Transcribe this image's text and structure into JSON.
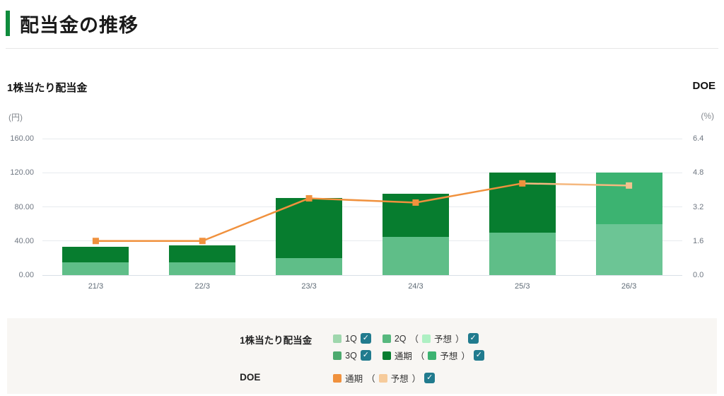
{
  "header": {
    "title": "配当金の推移"
  },
  "chart_data": {
    "type": "bar",
    "subtype": "stacked-bar-with-line",
    "categories": [
      "21/3",
      "22/3",
      "23/3",
      "24/3",
      "25/3",
      "26/3"
    ],
    "bar_axis": {
      "title": "1株当たり配当金",
      "unit": "(円)",
      "min": 0,
      "max": 160,
      "tick_labels": [
        "160.00",
        "120.00",
        "80.00",
        "40.00",
        "0.00"
      ],
      "tick_values": [
        160,
        120,
        80,
        40,
        0
      ]
    },
    "line_axis": {
      "title": "DOE",
      "unit": "(%)",
      "min": 0,
      "max": 6.4,
      "tick_labels": [
        "6.4",
        "4.8",
        "3.2",
        "1.6",
        "0.0"
      ],
      "tick_values": [
        6.4,
        4.8,
        3.2,
        1.6,
        0
      ]
    },
    "series": [
      {
        "name": "2Q",
        "role": "bar-bottom",
        "color": "#5fbe88",
        "values": [
          15,
          15,
          20,
          45,
          50,
          0
        ]
      },
      {
        "name": "2Q（予想）",
        "role": "bar-bottom-forecast",
        "color": "#6cc595",
        "values": [
          0,
          0,
          0,
          0,
          0,
          60
        ]
      },
      {
        "name": "通期",
        "role": "bar-top",
        "color": "#077d2f",
        "values": [
          18,
          20,
          70,
          50,
          70,
          0
        ]
      },
      {
        "name": "通期（予想）",
        "role": "bar-top-forecast",
        "color": "#3cb371",
        "values": [
          0,
          0,
          0,
          0,
          0,
          60
        ]
      }
    ],
    "bar_totals": [
      33,
      35,
      90,
      95,
      120,
      120
    ],
    "line_series": {
      "name": "DOE 通期",
      "values": [
        1.6,
        1.6,
        3.6,
        3.4,
        4.3,
        4.2
      ],
      "color": "#f0913d",
      "forecast_line_color": "#f5b87f",
      "forecast_marker_color": "#f4c28f",
      "forecast_index": 5
    },
    "grid": true,
    "legend_position": "bottom"
  },
  "legend": {
    "paren_open": "（",
    "paren_close": "）",
    "dividend": {
      "label": "1株当たり配当金",
      "items": {
        "q1": {
          "label": "1Q",
          "color": "#9fd7ad"
        },
        "q2": {
          "label": "2Q",
          "color": "#57b87e",
          "forecast_label": "予想",
          "forecast_color": "#aef0c3"
        },
        "q3": {
          "label": "3Q",
          "color": "#4caa6e"
        },
        "full": {
          "label": "通期",
          "color": "#077d2f",
          "forecast_label": "予想",
          "forecast_color": "#3cb371"
        }
      }
    },
    "doe": {
      "label": "DOE",
      "items": {
        "full": {
          "label": "通期",
          "color": "#f0913d",
          "forecast_label": "予想",
          "forecast_color": "#f6cb9b"
        }
      }
    }
  }
}
